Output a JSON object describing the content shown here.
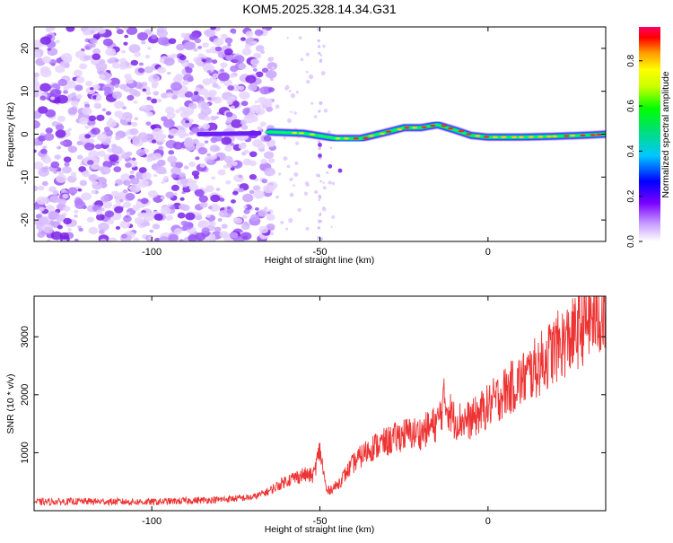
{
  "title": "KOM5.2025.328.14.34.G31",
  "colors": {
    "snr_line": "#ee3333",
    "axis": "#000000",
    "background": "#ffffff"
  },
  "chart_data": [
    {
      "type": "heatmap",
      "title": "KOM5.2025.328.14.34.G31",
      "xlabel": "Height of straight line (km)",
      "ylabel": "Frequency (Hz)",
      "xlim": [
        -135,
        35
      ],
      "ylim": [
        -25,
        25
      ],
      "xticks": [
        -100,
        -50,
        0
      ],
      "xtick_labels": [
        "-100",
        "-50",
        "0"
      ],
      "yticks": [
        -20,
        -10,
        0,
        10,
        20
      ],
      "ytick_labels": [
        "-20",
        "-10",
        "0",
        "10",
        "20"
      ],
      "noise_region_x": [
        -135,
        -68
      ],
      "signal_track": {
        "x": [
          -85,
          -75,
          -65,
          -55,
          -45,
          -38,
          -30,
          -25,
          -20,
          -15,
          -10,
          -5,
          0,
          10,
          20,
          30,
          35
        ],
        "frequency": [
          0,
          0,
          0.5,
          0.2,
          -1.0,
          -1.0,
          0.5,
          1.5,
          1.5,
          2.2,
          1.0,
          -0.3,
          -0.7,
          -0.7,
          -0.5,
          -0.2,
          0
        ]
      },
      "colorbar": {
        "label": "Normalized spectral amplitude",
        "range": [
          0,
          0.95
        ],
        "ticks": [
          0.0,
          0.2,
          0.4,
          0.6,
          0.8
        ],
        "tick_labels": [
          "0.0",
          "0.2",
          "0.4",
          "0.6",
          "0.8"
        ]
      }
    },
    {
      "type": "line",
      "xlabel": "Height of straight line (km)",
      "ylabel": "SNR (10 * v/v)",
      "xlim": [
        -135,
        35
      ],
      "ylim": [
        0,
        3700
      ],
      "xticks": [
        -100,
        -50,
        0
      ],
      "xtick_labels": [
        "-100",
        "-50",
        "0"
      ],
      "yticks": [
        1000,
        2000,
        3000
      ],
      "ytick_labels": [
        "1000",
        "2000",
        "3000"
      ],
      "series": [
        {
          "name": "SNR",
          "x": [
            -135,
            -120,
            -100,
            -80,
            -70,
            -65,
            -60,
            -55,
            -52,
            -50,
            -48,
            -45,
            -40,
            -35,
            -30,
            -25,
            -20,
            -15,
            -13,
            -10,
            -5,
            0,
            5,
            10,
            15,
            20,
            25,
            30,
            35
          ],
          "values": [
            150,
            160,
            150,
            190,
            230,
            340,
            520,
            620,
            600,
            1050,
            330,
            430,
            820,
            1080,
            1190,
            1320,
            1340,
            1520,
            1900,
            1560,
            1560,
            1800,
            2050,
            2250,
            2500,
            2800,
            3000,
            3300,
            3400
          ]
        }
      ]
    }
  ]
}
